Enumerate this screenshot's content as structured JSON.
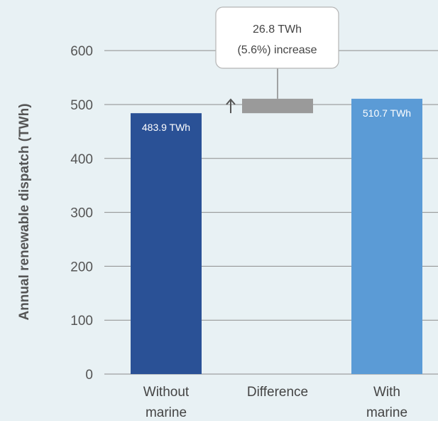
{
  "chart_data": {
    "type": "bar",
    "title": "",
    "xlabel": "",
    "ylabel": "Annual renewable dispatch (TWh)",
    "ylim": [
      0,
      620
    ],
    "yticks": [
      0,
      100,
      200,
      300,
      400,
      500,
      600
    ],
    "grid": true,
    "bars": [
      {
        "label_lines": [
          "Without",
          "marine"
        ],
        "base": 0,
        "value": 483.9,
        "value_label": "483.9 TWh",
        "color": "#2a5196"
      },
      {
        "label_lines": [
          "Difference"
        ],
        "base": 483.9,
        "value": 510.7,
        "value_label": "",
        "color": "#9a9a9a"
      },
      {
        "label_lines": [
          "With",
          "marine"
        ],
        "base": 0,
        "value": 510.7,
        "value_label": "510.7 TWh",
        "color": "#5b9bd6"
      }
    ],
    "callout": {
      "lines": [
        "26.8 TWh",
        "(5.6%) increase"
      ]
    },
    "colors": {
      "background": "#e8f1f4",
      "grid": "#8c8c8c",
      "arrow": "#555555"
    }
  }
}
